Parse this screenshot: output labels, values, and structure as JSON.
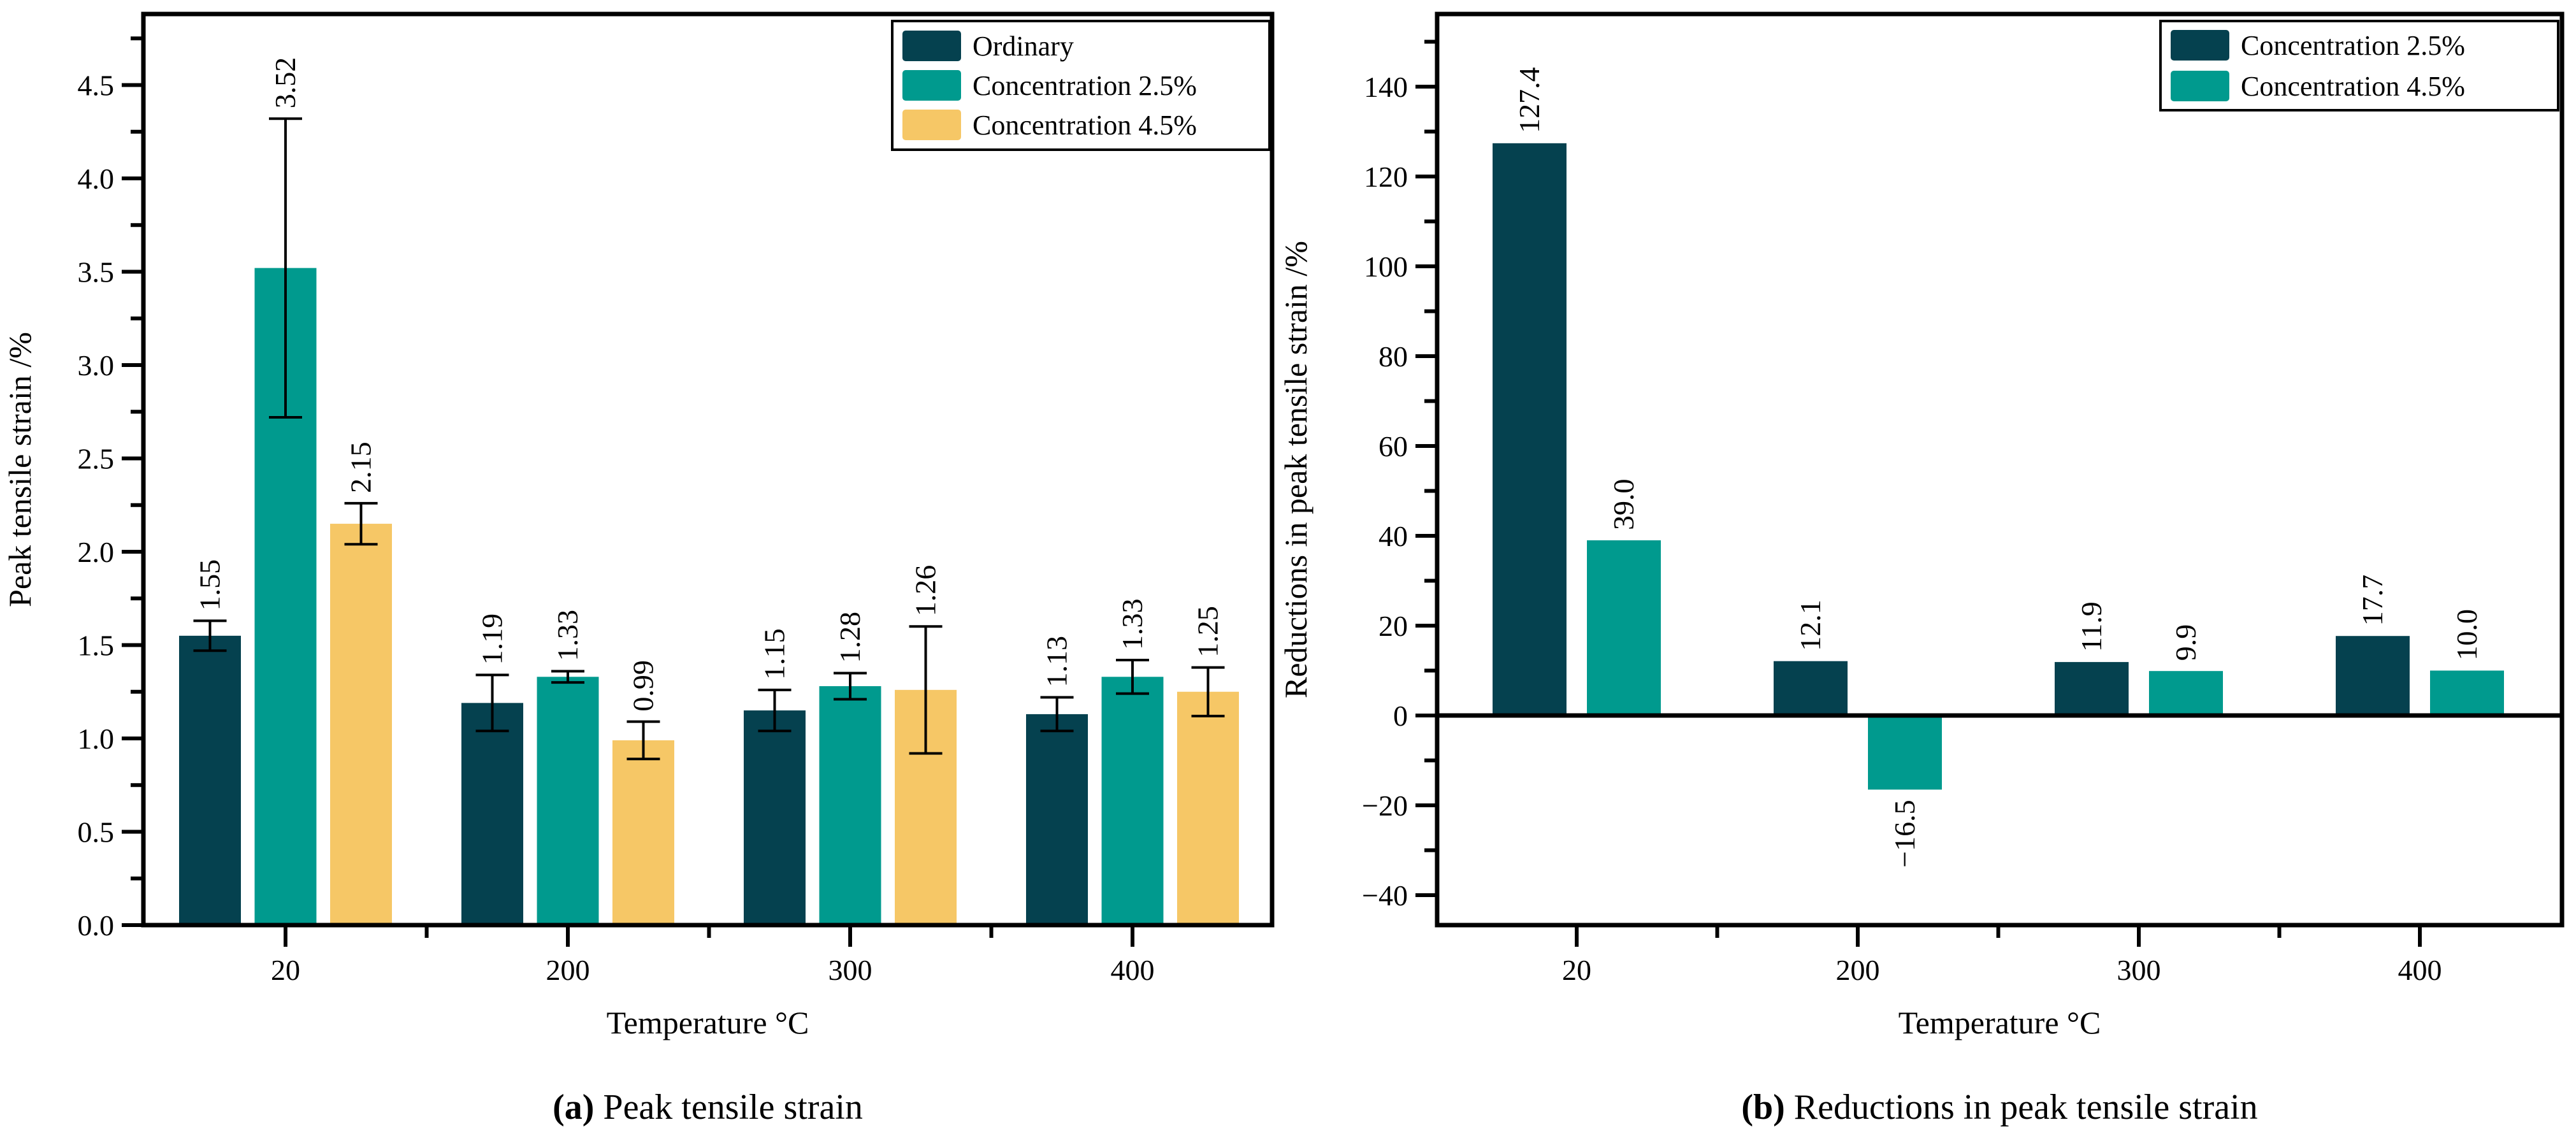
{
  "figure": {
    "background": "#ffffff",
    "axis_color": "#000000",
    "text_color": "#000000"
  },
  "chart_data": [
    {
      "type": "bar",
      "panel_caption_label": "(a)",
      "panel_caption_text": "Peak tensile strain",
      "xlabel": "Temperature °C",
      "ylabel": "Peak tensile strain /%",
      "categories": [
        "20",
        "200",
        "300",
        "400"
      ],
      "series": [
        {
          "name": "Ordinary",
          "color": "#05414f",
          "values": [
            1.55,
            1.19,
            1.15,
            1.13
          ],
          "errors": [
            0.08,
            0.15,
            0.11,
            0.09
          ],
          "value_labels": [
            "1.55",
            "1.19",
            "1.15",
            "1.13"
          ]
        },
        {
          "name": "Concentration 2.5%",
          "color": "#009a8e",
          "values": [
            3.52,
            1.33,
            1.28,
            1.33
          ],
          "errors": [
            0.8,
            0.03,
            0.07,
            0.09
          ],
          "value_labels": [
            "3.52",
            "1.33",
            "1.28",
            "1.33"
          ]
        },
        {
          "name": "Concentration 4.5%",
          "color": "#f6c766",
          "values": [
            2.15,
            0.99,
            1.26,
            1.25
          ],
          "errors": [
            0.11,
            0.1,
            0.34,
            0.13
          ],
          "value_labels": [
            "2.15",
            "0.99",
            "1.26",
            "1.25"
          ]
        }
      ],
      "legend": [
        "Ordinary",
        "Concentration 2.5%",
        "Concentration 4.5%"
      ],
      "legend_position": "upper right",
      "grid": false,
      "ylim": [
        0,
        4.88
      ],
      "y_ticks": {
        "start": 0,
        "end": 4.5,
        "major_step": 0.5,
        "minor_step": 0.25,
        "decimals": 1
      }
    },
    {
      "type": "bar",
      "panel_caption_label": "(b)",
      "panel_caption_text": "Reductions in peak tensile strain",
      "xlabel": "Temperature °C",
      "ylabel": "Reductions in peak tensile strain /%",
      "categories": [
        "20",
        "200",
        "300",
        "400"
      ],
      "series": [
        {
          "name": "Concentration 2.5%",
          "color": "#05414f",
          "values": [
            127.4,
            12.1,
            11.9,
            17.7
          ],
          "errors": null,
          "value_labels": [
            "127.4",
            "12.1",
            "11.9",
            "17.7"
          ]
        },
        {
          "name": "Concentration 4.5%",
          "color": "#009a8e",
          "values": [
            39.0,
            -16.5,
            9.9,
            10.0
          ],
          "errors": null,
          "value_labels": [
            "39.0",
            "−16.5",
            "9.9",
            "10.0"
          ]
        }
      ],
      "legend": [
        "Concentration 2.5%",
        "Concentration 4.5%"
      ],
      "legend_position": "upper right",
      "grid": false,
      "ylim": [
        -46.7,
        156.2
      ],
      "y_ticks": {
        "start": -40,
        "end": 140,
        "major_step": 20,
        "minor_step": 10,
        "decimals": 0
      }
    }
  ]
}
